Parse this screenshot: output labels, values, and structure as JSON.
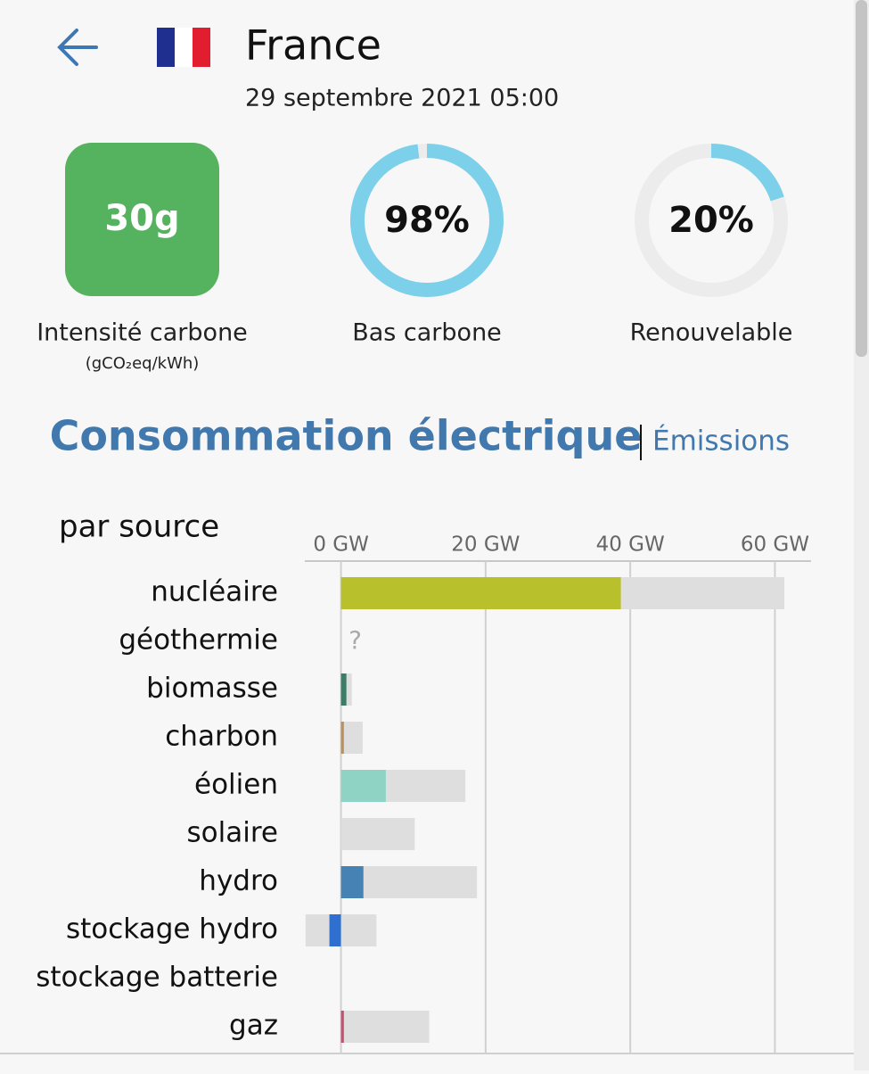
{
  "header": {
    "title": "France",
    "date": "29 septembre 2021 05:00"
  },
  "kpis": [
    {
      "value_label": "30g",
      "label": "Intensité carbone",
      "unit": "(gCO₂eq/kWh)"
    },
    {
      "value": 98,
      "value_label": "98%",
      "label": "Bas carbone"
    },
    {
      "value": 20,
      "value_label": "20%",
      "label": "Renouvelable"
    }
  ],
  "tabs": {
    "active": "Consommation électrique",
    "other": "Émissions"
  },
  "chart_data": {
    "type": "bar",
    "orientation": "horizontal",
    "title": "par source",
    "categories": [
      "nucléaire",
      "géothermie",
      "biomasse",
      "charbon",
      "éolien",
      "solaire",
      "hydro",
      "stockage hydro",
      "stockage batterie",
      "gaz"
    ],
    "values": [
      38.7,
      null,
      0.75,
      0.4,
      6.2,
      0,
      3.1,
      -1.6,
      null,
      0.4
    ],
    "value_labels": [
      null,
      "?",
      null,
      null,
      null,
      null,
      null,
      null,
      null,
      null
    ],
    "capacity": [
      61.3,
      null,
      1.5,
      3.0,
      17.2,
      10.2,
      18.8,
      4.9,
      null,
      12.2
    ],
    "capacity_min": [
      null,
      null,
      null,
      null,
      null,
      null,
      null,
      -4.9,
      null,
      null
    ],
    "colors": [
      "#b8c12b",
      "#e0a060",
      "#3b7d68",
      "#b8925a",
      "#8fd3c4",
      "#f5c84a",
      "#4682b4",
      "#2e6fd0",
      "#7a7a7a",
      "#c6506d"
    ],
    "capacity_color": "#dedede",
    "xlim": [
      -5,
      65
    ],
    "xticks": [
      {
        "value": 0,
        "label": "0 GW"
      },
      {
        "value": 20,
        "label": "20 GW"
      },
      {
        "value": 40,
        "label": "40 GW"
      },
      {
        "value": 60,
        "label": "60 GW"
      }
    ],
    "grid": true
  }
}
